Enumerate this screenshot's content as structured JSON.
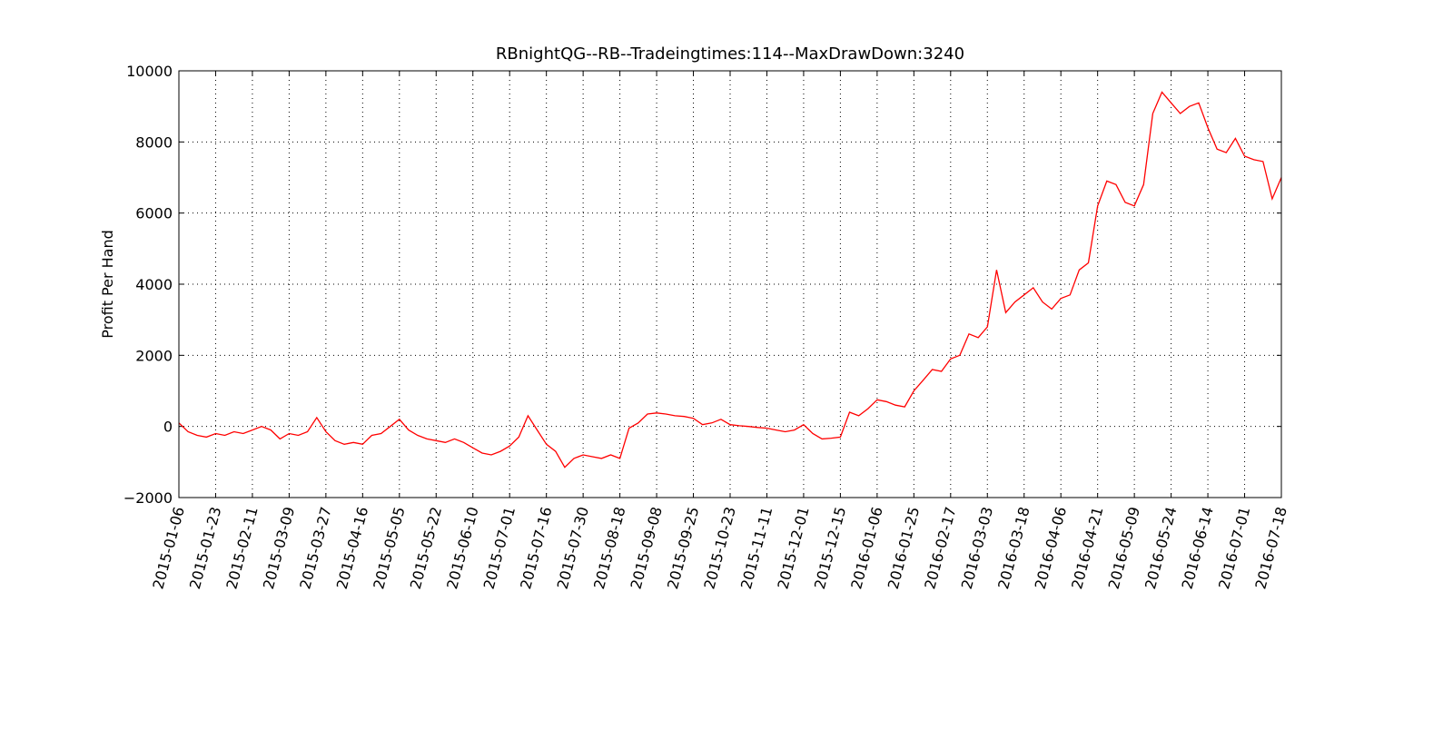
{
  "chart_data": {
    "type": "line",
    "title": "RBnightQG--RB--Tradeingtimes:114--MaxDrawDown:3240",
    "y_label": "Profit Per Hand",
    "categories": [
      "2015-01-06",
      null,
      null,
      null,
      "2015-01-23",
      null,
      null,
      null,
      "2015-02-11",
      null,
      null,
      null,
      "2015-03-09",
      null,
      null,
      null,
      "2015-03-27",
      null,
      null,
      null,
      "2015-04-16",
      null,
      null,
      null,
      "2015-05-05",
      null,
      null,
      null,
      "2015-05-22",
      null,
      null,
      null,
      "2015-06-10",
      null,
      null,
      null,
      "2015-07-01",
      null,
      null,
      null,
      "2015-07-16",
      null,
      null,
      null,
      "2015-07-30",
      null,
      null,
      null,
      "2015-08-18",
      null,
      null,
      null,
      "2015-09-08",
      null,
      null,
      null,
      "2015-09-25",
      null,
      null,
      null,
      "2015-10-23",
      null,
      null,
      null,
      "2015-11-11",
      null,
      null,
      null,
      "2015-12-01",
      null,
      null,
      null,
      "2015-12-15",
      null,
      null,
      null,
      "2016-01-06",
      null,
      null,
      null,
      "2016-01-25",
      null,
      null,
      null,
      "2016-02-17",
      null,
      null,
      null,
      "2016-03-03",
      null,
      null,
      null,
      "2016-03-18",
      null,
      null,
      null,
      "2016-04-06",
      null,
      null,
      null,
      "2016-04-21",
      null,
      null,
      null,
      "2016-05-09",
      null,
      null,
      null,
      "2016-05-24",
      null,
      null,
      null,
      "2016-06-14",
      null,
      null,
      null,
      "2016-07-01",
      null,
      null,
      null,
      "2016-07-18"
    ],
    "series": [
      {
        "name": "Profit",
        "color": "#ff0000",
        "values": [
          100,
          -150,
          -250,
          -300,
          -200,
          -250,
          -150,
          -200,
          -100,
          0,
          -100,
          -350,
          -200,
          -250,
          -150,
          250,
          -150,
          -400,
          -500,
          -450,
          -500,
          -250,
          -200,
          0,
          200,
          -100,
          -250,
          -350,
          -400,
          -450,
          -350,
          -450,
          -600,
          -750,
          -800,
          -700,
          -550,
          -300,
          300,
          -100,
          -500,
          -700,
          -1150,
          -900,
          -800,
          -850,
          -900,
          -800,
          -900,
          -50,
          100,
          350,
          380,
          350,
          300,
          280,
          230,
          50,
          100,
          200,
          50,
          20,
          0,
          -30,
          -50,
          -100,
          -150,
          -100,
          50,
          -200,
          -350,
          -330,
          -300,
          400,
          300,
          500,
          750,
          700,
          600,
          550,
          1000,
          1300,
          1600,
          1550,
          1900,
          2000,
          2600,
          2500,
          2800,
          4400,
          3200,
          3500,
          3700,
          3900,
          3500,
          3300,
          3600,
          3700,
          4400,
          4600,
          6200,
          6900,
          6800,
          6300,
          6200,
          6800,
          8800,
          9400,
          9100,
          8800,
          9000,
          9100,
          8400,
          7800,
          7700,
          8100,
          7600,
          7500,
          7450,
          6400,
          7000
        ]
      }
    ],
    "ylim": [
      -2000,
      10000
    ],
    "yticks": [
      {
        "value": -2000,
        "label": "−2000"
      },
      0,
      2000,
      4000,
      6000,
      8000,
      10000
    ],
    "grid": true
  }
}
